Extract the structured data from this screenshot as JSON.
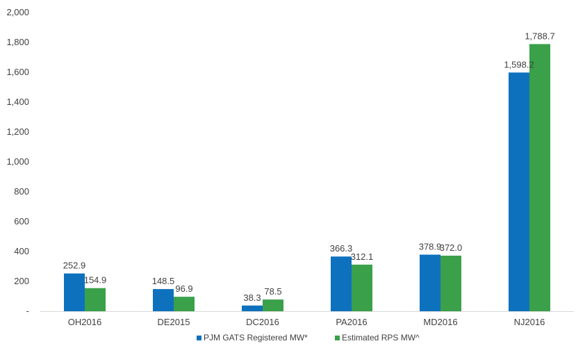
{
  "chart_data": {
    "type": "bar",
    "categories": [
      "OH2016",
      "DE2015",
      "DC2016",
      "PA2016",
      "MD2016",
      "NJ2016"
    ],
    "series": [
      {
        "name": "PJM GATS Registered MW*",
        "values": [
          252.9,
          148.5,
          38.3,
          366.3,
          378.9,
          1598.2
        ],
        "labels": [
          "252.9",
          "148.5",
          "38.3",
          "366.3",
          "378.9",
          "1,598.2"
        ],
        "color": "#0E71BE"
      },
      {
        "name": "Estimated RPS MW^",
        "values": [
          154.9,
          96.9,
          78.5,
          312.1,
          372.0,
          1788.7
        ],
        "labels": [
          "154.9",
          "96.9",
          "78.5",
          "312.1",
          "372.0",
          "1,788.7"
        ],
        "color": "#3AA04A"
      }
    ],
    "title": "",
    "xlabel": "",
    "ylabel": "",
    "ylim": [
      0,
      2000
    ],
    "yticks": [
      0,
      200,
      400,
      600,
      800,
      1000,
      1200,
      1400,
      1600,
      1800,
      2000
    ],
    "ytick_labels": [
      "-",
      "200",
      "400",
      "600",
      "800",
      "1,000",
      "1,200",
      "1,400",
      "1,600",
      "1,800",
      "2,000"
    ],
    "grid": false,
    "legend_position": "bottom"
  }
}
